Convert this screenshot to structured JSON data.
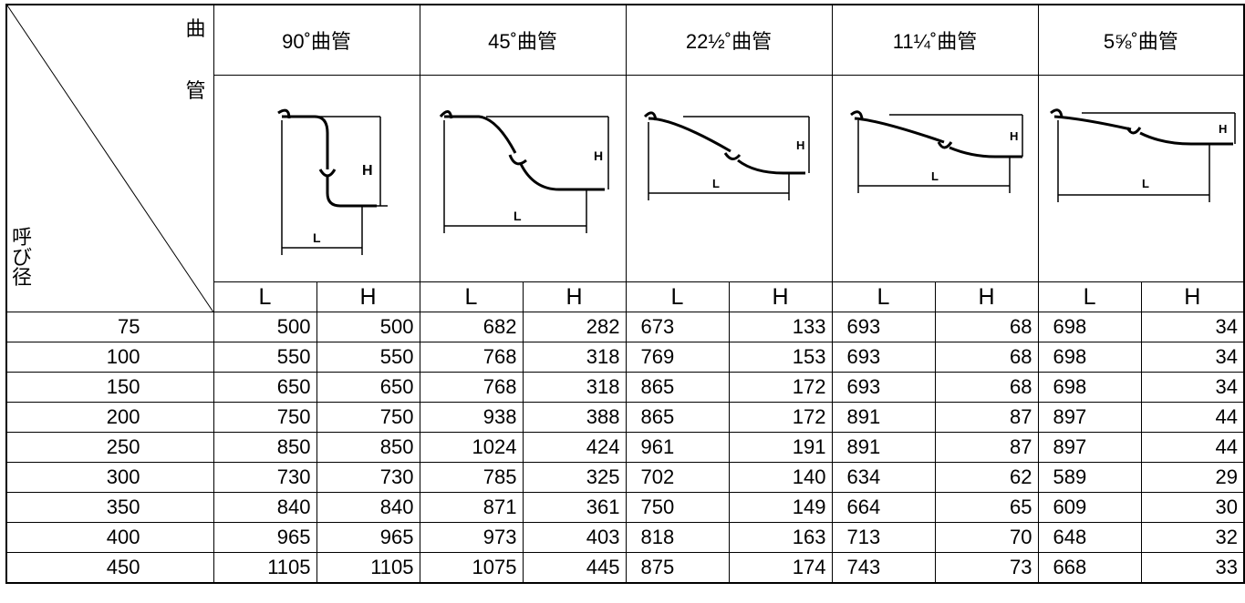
{
  "corner": {
    "top_label_1": "曲",
    "top_label_2": "管",
    "side_label": "呼び径"
  },
  "bends": [
    {
      "label": "90˚曲管",
      "pipe_icon": "bend-90-diagram-icon"
    },
    {
      "label": "45˚曲管",
      "pipe_icon": "bend-45-diagram-icon"
    },
    {
      "label": "22½˚曲管",
      "pipe_icon": "bend-22-diagram-icon"
    },
    {
      "label": "11¼˚曲管",
      "pipe_icon": "bend-11-diagram-icon"
    },
    {
      "label": "5⅝˚曲管",
      "pipe_icon": "bend-5-diagram-icon"
    }
  ],
  "subheaders": {
    "l": "L",
    "h": "H"
  },
  "figure_letters": {
    "l": "L",
    "h": "H"
  },
  "rows": [
    {
      "size": "75",
      "values": [
        "500",
        "500",
        "682",
        "282",
        "673",
        "133",
        "693",
        "68",
        "698",
        "34"
      ]
    },
    {
      "size": "100",
      "values": [
        "550",
        "550",
        "768",
        "318",
        "769",
        "153",
        "693",
        "68",
        "698",
        "34"
      ]
    },
    {
      "size": "150",
      "values": [
        "650",
        "650",
        "768",
        "318",
        "865",
        "172",
        "693",
        "68",
        "698",
        "34"
      ]
    },
    {
      "size": "200",
      "values": [
        "750",
        "750",
        "938",
        "388",
        "865",
        "172",
        "891",
        "87",
        "897",
        "44"
      ]
    },
    {
      "size": "250",
      "values": [
        "850",
        "850",
        "1024",
        "424",
        "961",
        "191",
        "891",
        "87",
        "897",
        "44"
      ]
    },
    {
      "size": "300",
      "values": [
        "730",
        "730",
        "785",
        "325",
        "702",
        "140",
        "634",
        "62",
        "589",
        "29"
      ]
    },
    {
      "size": "350",
      "values": [
        "840",
        "840",
        "871",
        "361",
        "750",
        "149",
        "664",
        "65",
        "609",
        "30"
      ]
    },
    {
      "size": "400",
      "values": [
        "965",
        "965",
        "973",
        "403",
        "818",
        "163",
        "713",
        "70",
        "648",
        "32"
      ]
    },
    {
      "size": "450",
      "values": [
        "1105",
        "1105",
        "1075",
        "445",
        "875",
        "174",
        "743",
        "73",
        "668",
        "33"
      ]
    }
  ]
}
